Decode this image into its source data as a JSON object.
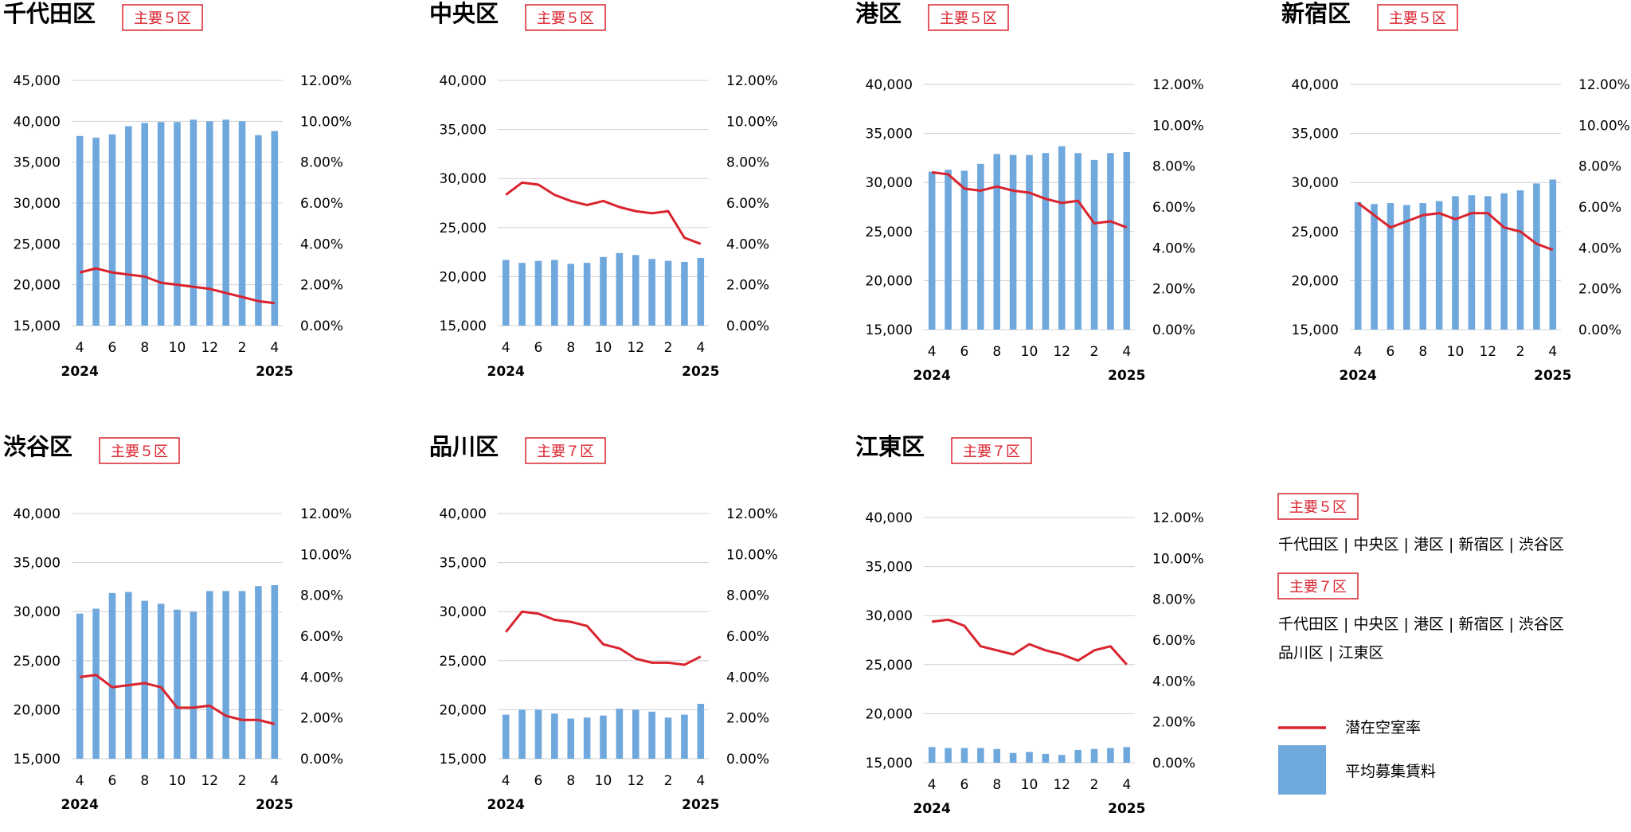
{
  "legend": {
    "groups": [
      {
        "badge": "主要５区",
        "members": [
          "千代田区 | 中央区 | 港区 | 新宿区 | 渋谷区"
        ]
      },
      {
        "badge": "主要７区",
        "members": [
          "千代田区 | 中央区 | 港区 | 新宿区 | 渋谷区",
          "品川区 | 江東区"
        ]
      }
    ],
    "line_label": "潜在空室率",
    "bar_label": "平均募集賃料",
    "line_color": "#d9232e",
    "bar_color": "#6fa8dc"
  },
  "chart_data": [
    {
      "type": "bar+line",
      "title": "千代田区",
      "badge": "主要５区",
      "x_ticks": [
        "4",
        "6",
        "8",
        "10",
        "12",
        "2",
        "4"
      ],
      "year_start": "2024",
      "year_end": "2025",
      "y_left": {
        "ticks": [
          "15,000",
          "20,000",
          "25,000",
          "30,000",
          "35,000",
          "40,000",
          "45,000"
        ],
        "min": 15000,
        "max": 45000
      },
      "y_right": {
        "ticks": [
          "0.00%",
          "2.00%",
          "4.00%",
          "6.00%",
          "8.00%",
          "10.00%",
          "12.00%"
        ],
        "min": 0,
        "max": 12
      },
      "series": [
        {
          "name": "平均募集賃料",
          "kind": "bar",
          "values": [
            38200,
            38000,
            38400,
            39400,
            39800,
            39900,
            39900,
            40200,
            40000,
            40200,
            40000,
            38300,
            38800
          ]
        },
        {
          "name": "潜在空室率",
          "kind": "line",
          "values": [
            2.6,
            2.8,
            2.6,
            2.5,
            2.4,
            2.1,
            2.0,
            1.9,
            1.8,
            1.6,
            1.4,
            1.2,
            1.1
          ]
        }
      ]
    },
    {
      "type": "bar+line",
      "title": "中央区",
      "badge": "主要５区",
      "x_ticks": [
        "4",
        "6",
        "8",
        "10",
        "12",
        "2",
        "4"
      ],
      "year_start": "2024",
      "year_end": "2025",
      "y_left": {
        "ticks": [
          "15,000",
          "20,000",
          "25,000",
          "30,000",
          "35,000",
          "40,000"
        ],
        "min": 15000,
        "max": 40000
      },
      "y_right": {
        "ticks": [
          "0.00%",
          "2.00%",
          "4.00%",
          "6.00%",
          "8.00%",
          "10.00%",
          "12.00%"
        ],
        "min": 0,
        "max": 12
      },
      "series": [
        {
          "name": "平均募集賃料",
          "kind": "bar",
          "values": [
            21700,
            21400,
            21600,
            21700,
            21300,
            21400,
            22000,
            22400,
            22200,
            21800,
            21600,
            21500,
            21900
          ]
        },
        {
          "name": "潜在空室率",
          "kind": "line",
          "values": [
            6.4,
            7.0,
            6.9,
            6.4,
            6.1,
            5.9,
            6.1,
            5.8,
            5.6,
            5.5,
            5.6,
            4.3,
            4.0
          ]
        }
      ]
    },
    {
      "type": "bar+line",
      "title": "港区",
      "badge": "主要５区",
      "x_ticks": [
        "4",
        "6",
        "8",
        "10",
        "12",
        "2",
        "4"
      ],
      "year_start": "2024",
      "year_end": "2025",
      "y_left": {
        "ticks": [
          "15,000",
          "20,000",
          "25,000",
          "30,000",
          "35,000",
          "40,000"
        ],
        "min": 15000,
        "max": 40000
      },
      "y_right": {
        "ticks": [
          "0.00%",
          "2.00%",
          "4.00%",
          "6.00%",
          "8.00%",
          "10.00%",
          "12.00%"
        ],
        "min": 0,
        "max": 12
      },
      "series": [
        {
          "name": "平均募集賃料",
          "kind": "bar",
          "values": [
            31100,
            31300,
            31200,
            31900,
            32900,
            32800,
            32800,
            33000,
            33700,
            33000,
            32300,
            33000,
            33100
          ]
        },
        {
          "name": "潜在空室率",
          "kind": "line",
          "values": [
            7.7,
            7.6,
            6.9,
            6.8,
            7.0,
            6.8,
            6.7,
            6.4,
            6.2,
            6.3,
            5.2,
            5.3,
            5.0
          ]
        }
      ]
    },
    {
      "type": "bar+line",
      "title": "新宿区",
      "badge": "主要５区",
      "x_ticks": [
        "4",
        "6",
        "8",
        "10",
        "12",
        "2",
        "4"
      ],
      "year_start": "2024",
      "year_end": "2025",
      "y_left": {
        "ticks": [
          "15,000",
          "20,000",
          "25,000",
          "30,000",
          "35,000",
          "40,000"
        ],
        "min": 15000,
        "max": 40000
      },
      "y_right": {
        "ticks": [
          "0.00%",
          "2.00%",
          "4.00%",
          "6.00%",
          "8.00%",
          "10.00%",
          "12.00%"
        ],
        "min": 0,
        "max": 12
      },
      "series": [
        {
          "name": "平均募集賃料",
          "kind": "bar",
          "values": [
            28000,
            27800,
            27900,
            27700,
            27900,
            28100,
            28600,
            28700,
            28600,
            28900,
            29200,
            29900,
            30300
          ]
        },
        {
          "name": "潜在空室率",
          "kind": "line",
          "values": [
            6.2,
            5.6,
            5.0,
            5.3,
            5.6,
            5.7,
            5.4,
            5.7,
            5.7,
            5.0,
            4.8,
            4.2,
            3.9
          ]
        }
      ]
    },
    {
      "type": "bar+line",
      "title": "渋谷区",
      "badge": "主要５区",
      "x_ticks": [
        "4",
        "6",
        "8",
        "10",
        "12",
        "2",
        "4"
      ],
      "year_start": "2024",
      "year_end": "2025",
      "y_left": {
        "ticks": [
          "15,000",
          "20,000",
          "25,000",
          "30,000",
          "35,000",
          "40,000"
        ],
        "min": 15000,
        "max": 40000
      },
      "y_right": {
        "ticks": [
          "0.00%",
          "2.00%",
          "4.00%",
          "6.00%",
          "8.00%",
          "10.00%",
          "12.00%"
        ],
        "min": 0,
        "max": 12
      },
      "series": [
        {
          "name": "平均募集賃料",
          "kind": "bar",
          "values": [
            29800,
            30300,
            31900,
            32000,
            31100,
            30800,
            30200,
            30000,
            32100,
            32100,
            32100,
            32600,
            32700
          ]
        },
        {
          "name": "潜在空室率",
          "kind": "line",
          "values": [
            4.0,
            4.1,
            3.5,
            3.6,
            3.7,
            3.5,
            2.5,
            2.5,
            2.6,
            2.1,
            1.9,
            1.9,
            1.7
          ]
        }
      ]
    },
    {
      "type": "bar+line",
      "title": "品川区",
      "badge": "主要７区",
      "x_ticks": [
        "4",
        "6",
        "8",
        "10",
        "12",
        "2",
        "4"
      ],
      "year_start": "2024",
      "year_end": "2025",
      "y_left": {
        "ticks": [
          "15,000",
          "20,000",
          "25,000",
          "30,000",
          "35,000",
          "40,000"
        ],
        "min": 15000,
        "max": 40000
      },
      "y_right": {
        "ticks": [
          "0.00%",
          "2.00%",
          "4.00%",
          "6.00%",
          "8.00%",
          "10.00%",
          "12.00%"
        ],
        "min": 0,
        "max": 12
      },
      "series": [
        {
          "name": "平均募集賃料",
          "kind": "bar",
          "values": [
            19500,
            20000,
            20000,
            19600,
            19100,
            19200,
            19400,
            20100,
            20000,
            19800,
            19200,
            19500,
            20600
          ]
        },
        {
          "name": "潜在空室率",
          "kind": "line",
          "values": [
            6.2,
            7.2,
            7.1,
            6.8,
            6.7,
            6.5,
            5.6,
            5.4,
            4.9,
            4.7,
            4.7,
            4.6,
            5.0
          ]
        }
      ]
    },
    {
      "type": "bar+line",
      "title": "江東区",
      "badge": "主要７区",
      "x_ticks": [
        "4",
        "6",
        "8",
        "10",
        "12",
        "2",
        "4"
      ],
      "year_start": "2024",
      "year_end": "2025",
      "y_left": {
        "ticks": [
          "15,000",
          "20,000",
          "25,000",
          "30,000",
          "35,000",
          "40,000"
        ],
        "min": 15000,
        "max": 40000
      },
      "y_right": {
        "ticks": [
          "0.00%",
          "2.00%",
          "4.00%",
          "6.00%",
          "8.00%",
          "10.00%",
          "12.00%"
        ],
        "min": 0,
        "max": 12
      },
      "series": [
        {
          "name": "平均募集賃料",
          "kind": "bar",
          "values": [
            16600,
            16500,
            16500,
            16500,
            16400,
            16000,
            16100,
            15900,
            15800,
            16300,
            16400,
            16500,
            16600
          ]
        },
        {
          "name": "潜在空室率",
          "kind": "line",
          "values": [
            6.9,
            7.0,
            6.7,
            5.7,
            5.5,
            5.3,
            5.8,
            5.5,
            5.3,
            5.0,
            5.5,
            5.7,
            4.8
          ]
        }
      ]
    }
  ]
}
